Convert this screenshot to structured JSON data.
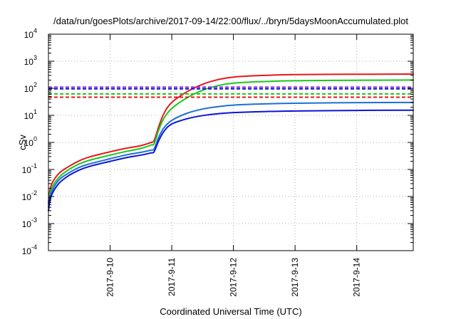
{
  "chart_data": {
    "type": "line",
    "title": "/data/run/goesPlots/archive/2017-09-14/22:00/flux/../bryn/5daysMoonAccumulated.plot",
    "xlabel": "Coordinated Universal Time (UTC)",
    "ylabel": "cSv",
    "y_scale": "log",
    "ylim": [
      0.0001,
      10000
    ],
    "xlim": [
      "2017-09-09 00:00",
      "2017-09-14 22:00"
    ],
    "grid": true,
    "legend": "none",
    "x_ticks": [
      "2017-9-10",
      "2017-9-11",
      "2017-9-12",
      "2017-9-13",
      "2017-9-14"
    ],
    "y_ticks": [
      {
        "base": "10",
        "exp": "-4",
        "value": 0.0001
      },
      {
        "base": "10",
        "exp": "-3",
        "value": 0.001
      },
      {
        "base": "10",
        "exp": "-2",
        "value": 0.01
      },
      {
        "base": "10",
        "exp": "-1",
        "value": 0.1
      },
      {
        "base": "10",
        "exp": "0",
        "value": 1
      },
      {
        "base": "10",
        "exp": "1",
        "value": 10
      },
      {
        "base": "10",
        "exp": "2",
        "value": 100
      },
      {
        "base": "10",
        "exp": "3",
        "value": 1000
      },
      {
        "base": "10",
        "exp": "4",
        "value": 10000
      }
    ],
    "series": [
      {
        "color": "#e8161b",
        "style": "solid",
        "points": [
          [
            "2017-09-09 00:00",
            0.006
          ],
          [
            "2017-09-09 01:00",
            0.025
          ],
          [
            "2017-09-09 04:00",
            0.07
          ],
          [
            "2017-09-09 08:00",
            0.13
          ],
          [
            "2017-09-09 12:00",
            0.21
          ],
          [
            "2017-09-09 16:00",
            0.29
          ],
          [
            "2017-09-10 00:00",
            0.45
          ],
          [
            "2017-09-10 06:00",
            0.6
          ],
          [
            "2017-09-10 12:00",
            0.76
          ],
          [
            "2017-09-10 16:00",
            1.0
          ],
          [
            "2017-09-10 17:00",
            1.1
          ],
          [
            "2017-09-10 18:00",
            2.0
          ],
          [
            "2017-09-10 19:00",
            4.0
          ],
          [
            "2017-09-10 21:00",
            12
          ],
          [
            "2017-09-11 00:00",
            30
          ],
          [
            "2017-09-11 06:00",
            75
          ],
          [
            "2017-09-11 12:00",
            140
          ],
          [
            "2017-09-11 18:00",
            210
          ],
          [
            "2017-09-12 00:00",
            260
          ],
          [
            "2017-09-12 12:00",
            300
          ],
          [
            "2017-09-13 00:00",
            320
          ],
          [
            "2017-09-14 00:00",
            330
          ],
          [
            "2017-09-14 22:00",
            335
          ]
        ]
      },
      {
        "color": "#18c818",
        "style": "solid",
        "points": [
          [
            "2017-09-09 00:00",
            0.005
          ],
          [
            "2017-09-09 01:00",
            0.018
          ],
          [
            "2017-09-09 04:00",
            0.05
          ],
          [
            "2017-09-09 08:00",
            0.1
          ],
          [
            "2017-09-09 12:00",
            0.16
          ],
          [
            "2017-09-09 16:00",
            0.22
          ],
          [
            "2017-09-10 00:00",
            0.34
          ],
          [
            "2017-09-10 06:00",
            0.46
          ],
          [
            "2017-09-10 12:00",
            0.6
          ],
          [
            "2017-09-10 16:00",
            0.8
          ],
          [
            "2017-09-10 17:00",
            0.85
          ],
          [
            "2017-09-10 18:00",
            1.5
          ],
          [
            "2017-09-10 19:00",
            3.0
          ],
          [
            "2017-09-10 21:00",
            8.0
          ],
          [
            "2017-09-11 00:00",
            18
          ],
          [
            "2017-09-11 06:00",
            45
          ],
          [
            "2017-09-11 12:00",
            85
          ],
          [
            "2017-09-11 18:00",
            125
          ],
          [
            "2017-09-12 00:00",
            155
          ],
          [
            "2017-09-12 12:00",
            178
          ],
          [
            "2017-09-13 00:00",
            190
          ],
          [
            "2017-09-14 00:00",
            198
          ],
          [
            "2017-09-14 22:00",
            202
          ]
        ]
      },
      {
        "color": "#1a6fdc",
        "style": "solid",
        "points": [
          [
            "2017-09-09 00:00",
            0.004
          ],
          [
            "2017-09-09 01:00",
            0.013
          ],
          [
            "2017-09-09 04:00",
            0.04
          ],
          [
            "2017-09-09 08:00",
            0.075
          ],
          [
            "2017-09-09 12:00",
            0.12
          ],
          [
            "2017-09-09 16:00",
            0.16
          ],
          [
            "2017-09-10 00:00",
            0.25
          ],
          [
            "2017-09-10 06:00",
            0.34
          ],
          [
            "2017-09-10 12:00",
            0.43
          ],
          [
            "2017-09-10 16:00",
            0.52
          ],
          [
            "2017-09-10 17:00",
            0.55
          ],
          [
            "2017-09-10 18:00",
            0.9
          ],
          [
            "2017-09-10 19:00",
            1.6
          ],
          [
            "2017-09-10 21:00",
            3.5
          ],
          [
            "2017-09-11 00:00",
            6.5
          ],
          [
            "2017-09-11 06:00",
            12
          ],
          [
            "2017-09-11 12:00",
            17
          ],
          [
            "2017-09-11 18:00",
            21
          ],
          [
            "2017-09-12 00:00",
            24
          ],
          [
            "2017-09-12 12:00",
            26.5
          ],
          [
            "2017-09-13 00:00",
            28
          ],
          [
            "2017-09-14 00:00",
            29.5
          ],
          [
            "2017-09-14 22:00",
            30
          ]
        ]
      },
      {
        "color": "#0c14d6",
        "style": "solid",
        "points": [
          [
            "2017-09-09 00:00",
            0.003
          ],
          [
            "2017-09-09 01:00",
            0.01
          ],
          [
            "2017-09-09 04:00",
            0.03
          ],
          [
            "2017-09-09 08:00",
            0.06
          ],
          [
            "2017-09-09 12:00",
            0.095
          ],
          [
            "2017-09-09 16:00",
            0.13
          ],
          [
            "2017-09-10 00:00",
            0.2
          ],
          [
            "2017-09-10 06:00",
            0.27
          ],
          [
            "2017-09-10 12:00",
            0.34
          ],
          [
            "2017-09-10 16:00",
            0.41
          ],
          [
            "2017-09-10 17:00",
            0.43
          ],
          [
            "2017-09-10 18:00",
            0.7
          ],
          [
            "2017-09-10 19:00",
            1.2
          ],
          [
            "2017-09-10 21:00",
            2.6
          ],
          [
            "2017-09-11 00:00",
            4.8
          ],
          [
            "2017-09-11 06:00",
            7.5
          ],
          [
            "2017-09-11 12:00",
            9.8
          ],
          [
            "2017-09-11 18:00",
            11.5
          ],
          [
            "2017-09-12 00:00",
            12.7
          ],
          [
            "2017-09-12 12:00",
            13.8
          ],
          [
            "2017-09-13 00:00",
            14.5
          ],
          [
            "2017-09-14 00:00",
            15.2
          ],
          [
            "2017-09-14 22:00",
            15.6
          ]
        ]
      },
      {
        "color": "#8a2be2",
        "style": "dashed",
        "points": [
          [
            "2017-09-09 00:00",
            110
          ],
          [
            "2017-09-14 22:00",
            110
          ]
        ]
      },
      {
        "color": "#0c14d6",
        "style": "dashed",
        "points": [
          [
            "2017-09-09 00:00",
            95
          ],
          [
            "2017-09-14 22:00",
            95
          ]
        ]
      },
      {
        "color": "#18c818",
        "style": "dashed",
        "points": [
          [
            "2017-09-09 00:00",
            62
          ],
          [
            "2017-09-14 22:00",
            62
          ]
        ]
      },
      {
        "color": "#e8161b",
        "style": "dashed",
        "points": [
          [
            "2017-09-09 00:00",
            47
          ],
          [
            "2017-09-14 22:00",
            47
          ]
        ]
      }
    ]
  }
}
